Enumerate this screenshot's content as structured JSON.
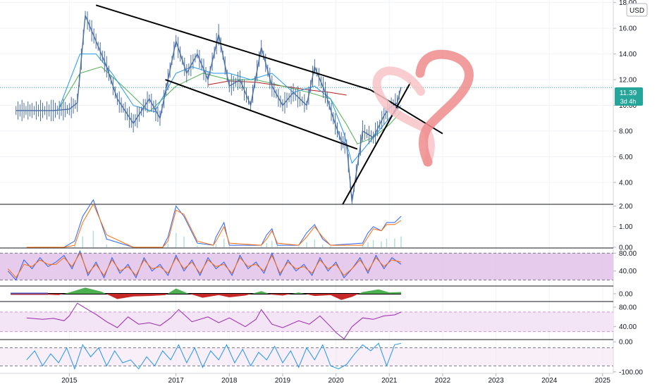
{
  "currency_button": "USD",
  "price_badge": {
    "price": "11.39",
    "countdown": "3d 4h",
    "color": "#26a69a"
  },
  "x_axis_labels": [
    "2015",
    "2017",
    "2018",
    "2019",
    "2020",
    "2021",
    "2022",
    "2023",
    "2024",
    "2025"
  ],
  "colors": {
    "price": "#4a6fa5",
    "ema_blue": "#2196f3",
    "ema_green": "#4caf50",
    "ma_red": "#b71c1c",
    "osc_band": "#e1bee7",
    "osc_band2": "#f3e5f5",
    "osc_blue": "#2962ff",
    "osc_orange": "#ff6d00",
    "rsi_purple": "#9c27b0",
    "heart": "#f08080"
  },
  "chart_data": [
    {
      "type": "line",
      "title": "",
      "x_range": [
        2013.7,
        2025.2
      ],
      "ylim": [
        2.3,
        18.2
      ],
      "y_ticks": [
        "4.00",
        "6.00",
        "8.00",
        "10.00",
        "12.00",
        "14.00",
        "16.00",
        "18.00"
      ],
      "y_tick_values": [
        4,
        6,
        8,
        10,
        12,
        14,
        16,
        18
      ],
      "last_price": 11.39,
      "price": {
        "x": [
          2014.0,
          2014.3,
          2014.7,
          2015.0,
          2015.15,
          2015.3,
          2015.5,
          2015.7,
          2015.9,
          2016.2,
          2016.5,
          2016.7,
          2016.85,
          2017.0,
          2017.2,
          2017.4,
          2017.6,
          2017.8,
          2018.0,
          2018.2,
          2018.4,
          2018.6,
          2018.8,
          2019.0,
          2019.2,
          2019.45,
          2019.6,
          2019.8,
          2019.95,
          2020.1,
          2020.2,
          2020.3,
          2020.5,
          2020.7,
          2020.9,
          2021.0,
          2021.15,
          2021.22
        ],
        "y": [
          9.6,
          9.6,
          9.6,
          9.7,
          10.2,
          17.0,
          15.0,
          13.0,
          10.5,
          8.6,
          10.5,
          9.0,
          12.0,
          15.0,
          12.5,
          14.0,
          12.0,
          15.5,
          11.5,
          12.0,
          10.0,
          14.5,
          11.5,
          10.0,
          11.0,
          10.0,
          13.0,
          11.0,
          9.0,
          7.2,
          7.0,
          2.5,
          8.0,
          7.5,
          9.2,
          9.8,
          10.2,
          11.4
        ]
      },
      "ema_blue": {
        "x": [
          2014.8,
          2015.2,
          2015.5,
          2015.8,
          2016.2,
          2016.6,
          2017.0,
          2017.3,
          2017.7,
          2018.0,
          2018.4,
          2018.8,
          2019.2,
          2019.6,
          2019.9,
          2020.15,
          2020.3,
          2020.5,
          2020.8,
          2021.0,
          2021.22
        ],
        "y": [
          9.7,
          14.0,
          14.0,
          12.5,
          10.0,
          9.5,
          12.5,
          13.0,
          12.5,
          12.5,
          12.0,
          12.5,
          11.0,
          11.5,
          10.5,
          7.8,
          5.5,
          6.5,
          8.0,
          9.0,
          10.0
        ]
      },
      "ema_green": {
        "x": [
          2014.8,
          2015.2,
          2015.6,
          2016.0,
          2016.5,
          2017.0,
          2017.5,
          2018.0,
          2018.5,
          2019.0,
          2019.5,
          2019.9,
          2020.2,
          2020.4,
          2020.7,
          2021.0,
          2021.22
        ],
        "y": [
          9.7,
          12.5,
          13.0,
          11.5,
          9.5,
          11.5,
          12.5,
          12.0,
          12.0,
          11.5,
          11.0,
          10.5,
          8.5,
          7.0,
          7.5,
          8.5,
          9.5
        ]
      },
      "ma_red": {
        "x": [
          2017.6,
          2018.0,
          2018.5,
          2019.0,
          2019.5,
          2019.9,
          2020.2
        ],
        "y": [
          11.6,
          11.9,
          11.8,
          11.5,
          11.2,
          11.0,
          10.8
        ]
      },
      "trendlines": [
        {
          "x": [
            2015.5,
            2020.65
          ],
          "y": [
            17.8,
            11.2
          ]
        },
        {
          "x": [
            2020.65,
            2022.0
          ],
          "y": [
            11.2,
            7.8
          ]
        },
        {
          "x": [
            2016.8,
            2020.4
          ],
          "y": [
            12.0,
            6.6
          ]
        },
        {
          "x": [
            2020.1,
            2021.4
          ],
          "y": [
            2.1,
            11.8
          ]
        }
      ]
    },
    {
      "type": "line",
      "ylim": [
        0,
        2.05
      ],
      "y_ticks": [
        "0.00",
        "1.00",
        "2.00"
      ],
      "y_tick_values": [
        0,
        1,
        2
      ],
      "x": [
        2014.2,
        2014.9,
        2015.1,
        2015.25,
        2015.45,
        2015.7,
        2016.2,
        2016.75,
        2016.85,
        2017.0,
        2017.15,
        2017.4,
        2017.7,
        2017.75,
        2017.9,
        2018.0,
        2018.6,
        2018.7,
        2018.8,
        2018.9,
        2019.3,
        2019.45,
        2019.6,
        2019.75,
        2019.9,
        2020.5,
        2020.6,
        2020.7,
        2020.85,
        2020.95,
        2021.1,
        2021.22
      ],
      "series": [
        {
          "color": "#2962ff",
          "values": [
            0,
            0,
            0.3,
            1.5,
            2.3,
            0.4,
            0,
            0,
            0.5,
            2.0,
            1.5,
            0.2,
            0.1,
            0.5,
            1.2,
            0.1,
            0.1,
            0.6,
            0.9,
            0.1,
            0.1,
            0.7,
            1.1,
            0.4,
            0.1,
            0.2,
            0.7,
            1.0,
            0.8,
            1.2,
            1.2,
            1.5
          ]
        },
        {
          "color": "#ff6d00",
          "values": [
            0,
            0,
            0.1,
            1.2,
            2.1,
            0.6,
            0,
            0,
            0.3,
            1.8,
            1.6,
            0.3,
            0.1,
            0.3,
            1.0,
            0.2,
            0.1,
            0.4,
            0.8,
            0.2,
            0.1,
            0.5,
            1.0,
            0.5,
            0.1,
            0.1,
            0.5,
            0.9,
            0.8,
            1.1,
            1.1,
            1.3
          ]
        }
      ]
    },
    {
      "type": "line",
      "ylim": [
        8,
        90
      ],
      "y_ticks": [
        "40.00",
        "80.00"
      ],
      "y_tick_values": [
        40,
        80
      ],
      "band": [
        20,
        80
      ],
      "x": [
        2013.85,
        2014.0,
        2014.15,
        2014.3,
        2014.45,
        2014.6,
        2014.75,
        2014.9,
        2015.05,
        2015.2,
        2015.35,
        2015.5,
        2015.65,
        2015.8,
        2015.95,
        2016.1,
        2016.25,
        2016.4,
        2016.55,
        2016.7,
        2016.85,
        2017.0,
        2017.15,
        2017.3,
        2017.45,
        2017.6,
        2017.75,
        2017.9,
        2018.05,
        2018.2,
        2018.35,
        2018.5,
        2018.65,
        2018.8,
        2018.95,
        2019.1,
        2019.25,
        2019.4,
        2019.55,
        2019.7,
        2019.85,
        2020.0,
        2020.15,
        2020.3,
        2020.45,
        2020.6,
        2020.75,
        2020.9,
        2021.05,
        2021.22
      ],
      "series": [
        {
          "color": "#2962ff",
          "values": [
            40,
            20,
            65,
            45,
            70,
            50,
            60,
            75,
            45,
            85,
            30,
            60,
            25,
            70,
            35,
            55,
            25,
            70,
            40,
            55,
            30,
            75,
            40,
            65,
            30,
            70,
            45,
            60,
            30,
            75,
            45,
            60,
            35,
            80,
            30,
            65,
            40,
            55,
            30,
            70,
            40,
            60,
            25,
            45,
            70,
            35,
            75,
            45,
            70,
            55
          ]
        },
        {
          "color": "#ff6d00",
          "values": [
            45,
            25,
            55,
            50,
            65,
            55,
            55,
            70,
            50,
            80,
            35,
            55,
            30,
            65,
            40,
            50,
            30,
            65,
            45,
            50,
            35,
            70,
            45,
            60,
            35,
            65,
            50,
            55,
            35,
            70,
            50,
            55,
            40,
            75,
            35,
            60,
            45,
            50,
            35,
            65,
            45,
            55,
            30,
            45,
            65,
            40,
            70,
            50,
            65,
            60
          ]
        }
      ]
    },
    {
      "type": "area",
      "ylim": [
        -1.6,
        1.6
      ],
      "y_ticks": [
        "0.00"
      ],
      "y_tick_values": [
        0
      ],
      "x": [
        2013.9,
        2014.6,
        2014.8,
        2015.0,
        2015.3,
        2015.6,
        2015.9,
        2016.2,
        2016.5,
        2016.8,
        2017.0,
        2017.2,
        2017.5,
        2017.8,
        2018.0,
        2018.3,
        2018.6,
        2018.8,
        2019.0,
        2019.3,
        2019.6,
        2019.9,
        2020.1,
        2020.3,
        2020.5,
        2020.8,
        2021.0,
        2021.22
      ],
      "values": [
        -0.2,
        -0.2,
        -0.3,
        0.3,
        1.4,
        0.5,
        -1.2,
        -0.6,
        -0.5,
        -0.3,
        1.2,
        0.2,
        -0.9,
        -0.3,
        -0.8,
        -0.4,
        0.6,
        -0.2,
        -0.4,
        0.3,
        -0.5,
        -0.3,
        -1.4,
        -0.7,
        0.4,
        1.0,
        0.3,
        0.4
      ],
      "pos_color": "#4caf50",
      "neg_color": "#c62828"
    },
    {
      "type": "line",
      "ylim": [
        15,
        90
      ],
      "y_ticks": [
        "40.00",
        "80.00"
      ],
      "y_tick_values": [
        40,
        80
      ],
      "band": [
        30,
        70
      ],
      "x": [
        2014.2,
        2014.5,
        2014.7,
        2014.9,
        2015.0,
        2015.15,
        2015.3,
        2015.5,
        2015.7,
        2015.9,
        2016.1,
        2016.3,
        2016.5,
        2016.7,
        2016.9,
        2017.05,
        2017.3,
        2017.6,
        2017.8,
        2018.0,
        2018.3,
        2018.5,
        2018.6,
        2018.8,
        2019.0,
        2019.3,
        2019.5,
        2019.7,
        2019.9,
        2020.0,
        2020.15,
        2020.3,
        2020.5,
        2020.7,
        2020.9,
        2021.1,
        2021.22
      ],
      "values": [
        58,
        55,
        57,
        52,
        62,
        88,
        78,
        65,
        50,
        38,
        60,
        45,
        48,
        42,
        58,
        75,
        50,
        60,
        48,
        58,
        40,
        55,
        75,
        45,
        38,
        52,
        45,
        62,
        40,
        28,
        15,
        40,
        58,
        55,
        62,
        64,
        70
      ]
    },
    {
      "type": "line",
      "ylim": [
        -105,
        5
      ],
      "y_ticks": [
        "0.00",
        "-100.00"
      ],
      "y_tick_values": [
        0,
        -100
      ],
      "band": [
        -80,
        -20
      ],
      "x": [
        2014.2,
        2014.35,
        2014.5,
        2014.65,
        2014.8,
        2014.95,
        2015.1,
        2015.25,
        2015.4,
        2015.55,
        2015.7,
        2015.85,
        2016.0,
        2016.15,
        2016.3,
        2016.45,
        2016.6,
        2016.75,
        2016.9,
        2017.05,
        2017.2,
        2017.35,
        2017.5,
        2017.65,
        2017.8,
        2017.95,
        2018.1,
        2018.25,
        2018.4,
        2018.55,
        2018.7,
        2018.85,
        2019.0,
        2019.15,
        2019.3,
        2019.45,
        2019.6,
        2019.75,
        2019.9,
        2020.05,
        2020.2,
        2020.35,
        2020.5,
        2020.65,
        2020.8,
        2020.95,
        2021.1,
        2021.22
      ],
      "values": [
        -60,
        -30,
        -80,
        -40,
        -70,
        -20,
        -90,
        -10,
        -50,
        -20,
        -80,
        -30,
        -70,
        -60,
        -90,
        -50,
        -80,
        -30,
        -60,
        -10,
        -70,
        -20,
        -85,
        -30,
        -60,
        -10,
        -70,
        -25,
        -80,
        -35,
        -60,
        -15,
        -70,
        -30,
        -85,
        -20,
        -60,
        -10,
        -80,
        -90,
        -75,
        -40,
        -10,
        -30,
        -5,
        -80,
        -10,
        -5
      ]
    }
  ]
}
